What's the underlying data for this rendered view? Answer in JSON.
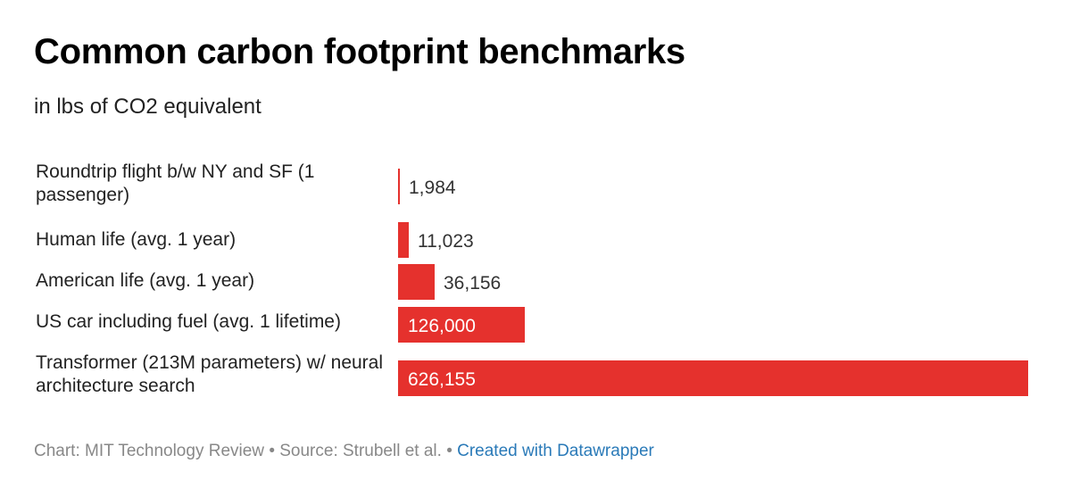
{
  "header": {
    "title": "Common carbon footprint benchmarks",
    "subtitle": "in lbs of CO2 equivalent"
  },
  "chart_data": {
    "type": "bar",
    "orientation": "horizontal",
    "categories": [
      "Roundtrip flight b/w NY and SF (1 passenger)",
      "Human life (avg. 1 year)",
      "American life (avg. 1 year)",
      "US car including fuel (avg. 1 lifetime)",
      "Transformer (213M parameters) w/ neural architecture search"
    ],
    "values": [
      1984,
      11023,
      36156,
      126000,
      626155
    ],
    "value_labels": [
      "1,984",
      "11,023",
      "36,156",
      "126,000",
      "626,155"
    ],
    "title": "Common carbon footprint benchmarks",
    "subtitle": "in lbs of CO2 equivalent",
    "xlim": [
      0,
      626155
    ],
    "grid": false,
    "bar_color": "#e5312d"
  },
  "footer": {
    "chart_credit": "Chart: MIT Technology Review",
    "separator": "•",
    "source": "Source: Strubell et al.",
    "link": "Created with Datawrapper"
  },
  "colors": {
    "bar": "#e5312d",
    "footer_text": "#888888",
    "link": "#2a7ab8"
  }
}
